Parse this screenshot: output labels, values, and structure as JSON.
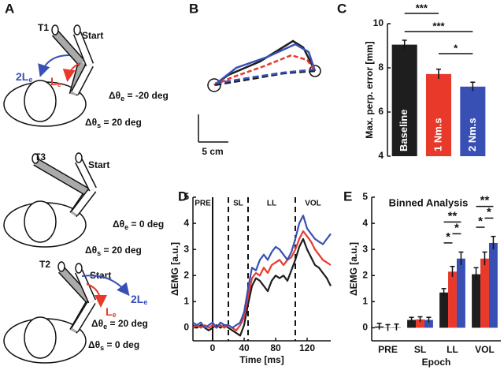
{
  "panel_labels": [
    "A",
    "B",
    "C",
    "D",
    "E"
  ],
  "panel_a": {
    "diagrams": [
      {
        "target": "T1",
        "start": "Start",
        "arrows": [
          {
            "main": "2L",
            "sub": "e"
          },
          {
            "main": "L",
            "sub": "e"
          }
        ],
        "elbow": {
          "main": "Δθ",
          "sub": "e",
          "rest": " = -20 deg"
        },
        "shoulder": {
          "main": "Δθ",
          "sub": "s",
          "rest": " = 20 deg"
        }
      },
      {
        "target": "T3",
        "start": "Start",
        "elbow": {
          "main": "Δθ",
          "sub": "e",
          "rest": " = 0 deg"
        },
        "shoulder": {
          "main": "Δθ",
          "sub": "s",
          "rest": " = 20 deg"
        }
      },
      {
        "target": "T2",
        "start": "Start",
        "arrows": [
          {
            "main": "2L",
            "sub": "e"
          },
          {
            "main": "L",
            "sub": "e"
          }
        ],
        "elbow": {
          "main": "Δθ",
          "sub": "e",
          "rest": " = 20 deg"
        },
        "shoulder": {
          "main": "Δθ",
          "sub": "s",
          "rest": " = 0 deg"
        }
      }
    ]
  },
  "panel_b": {
    "scale_label": "5 cm"
  },
  "chart_data": [
    {
      "type": "bar",
      "y_label": "Max. perp. error [mm]",
      "categories": [
        "Baseline",
        "1 Nm.s",
        "2 Nm.s"
      ],
      "values": [
        9.05,
        7.72,
        7.15
      ],
      "errors": [
        0.2,
        0.22,
        0.2
      ],
      "colors": [
        "#1e1e1e",
        "#e8392b",
        "#3850b4"
      ],
      "ylim": [
        4,
        10
      ],
      "yticks": [
        4,
        6,
        8,
        10
      ],
      "significance": [
        "***",
        "***",
        "*"
      ]
    },
    {
      "type": "line",
      "x_label": "Time [ms]",
      "y_label": "ΔEMG [a.u.]",
      "x": [
        -25,
        -20,
        -15,
        -10,
        -5,
        0,
        5,
        10,
        15,
        20,
        25,
        30,
        35,
        40,
        45,
        50,
        55,
        60,
        65,
        70,
        75,
        80,
        85,
        90,
        95,
        100,
        105,
        110,
        115,
        120,
        125,
        130,
        135,
        140,
        145,
        150
      ],
      "series": [
        {
          "color": "#1e1e1e",
          "values": [
            0.1,
            0.0,
            0.1,
            0.0,
            -0.1,
            0.0,
            0.1,
            0.0,
            0.1,
            0.0,
            -0.1,
            -0.2,
            -0.3,
            0.1,
            0.9,
            1.6,
            1.9,
            1.8,
            1.6,
            1.4,
            1.8,
            2.0,
            1.9,
            2.0,
            1.8,
            2.2,
            2.6,
            3.1,
            3.4,
            3.0,
            2.7,
            2.4,
            2.3,
            2.1,
            1.9,
            1.6
          ]
        },
        {
          "color": "#e8392b",
          "values": [
            0.0,
            0.1,
            0.0,
            0.1,
            0.0,
            0.1,
            0.0,
            0.1,
            0.0,
            0.1,
            0.0,
            -0.1,
            0.1,
            0.4,
            1.2,
            1.9,
            2.1,
            2.0,
            2.3,
            2.1,
            2.4,
            2.5,
            2.6,
            2.4,
            2.6,
            2.7,
            3.0,
            3.4,
            3.7,
            3.5,
            3.3,
            3.0,
            2.8,
            2.6,
            2.5,
            2.4
          ]
        },
        {
          "color": "#3850b4",
          "values": [
            0.2,
            0.1,
            0.2,
            0.0,
            0.1,
            0.2,
            0.0,
            0.2,
            0.1,
            0.1,
            0.0,
            0.1,
            0.2,
            0.6,
            1.5,
            2.3,
            2.2,
            2.6,
            2.8,
            2.6,
            2.9,
            3.1,
            3.0,
            2.8,
            2.6,
            2.9,
            3.4,
            4.0,
            4.3,
            3.8,
            3.6,
            3.4,
            3.3,
            3.2,
            3.4,
            3.6
          ]
        }
      ],
      "epoch_labels": [
        "PRE",
        "SL",
        "LL",
        "VOL"
      ],
      "epoch_boundaries": [
        0,
        20,
        45,
        105
      ],
      "xlim": [
        -25,
        150
      ],
      "xticks": [
        0,
        40,
        80,
        120
      ],
      "ylim": [
        -0.5,
        5
      ],
      "yticks": [
        0,
        1,
        2,
        3,
        4,
        5
      ]
    },
    {
      "type": "grouped_bar",
      "title": "Binned Analysis",
      "x_label": "Epoch",
      "y_label": "ΔEMG [a.u.]",
      "categories": [
        "PRE",
        "SL",
        "LL",
        "VOL"
      ],
      "series": [
        {
          "color": "#1e1e1e",
          "values": [
            0.05,
            0.3,
            1.35,
            2.05
          ],
          "errors": [
            0.12,
            0.1,
            0.15,
            0.25
          ]
        },
        {
          "color": "#e8392b",
          "values": [
            0.0,
            0.32,
            2.15,
            2.65
          ],
          "errors": [
            0.12,
            0.1,
            0.2,
            0.25
          ]
        },
        {
          "color": "#3850b4",
          "values": [
            0.02,
            0.3,
            2.65,
            3.25
          ],
          "errors": [
            0.12,
            0.1,
            0.25,
            0.25
          ]
        }
      ],
      "significance": [
        null,
        null,
        [
          "**",
          "*",
          "*"
        ],
        [
          "**",
          "*",
          "*"
        ]
      ],
      "ylim": [
        -0.5,
        5
      ],
      "yticks": [
        0,
        1,
        2,
        3,
        4,
        5
      ]
    }
  ]
}
